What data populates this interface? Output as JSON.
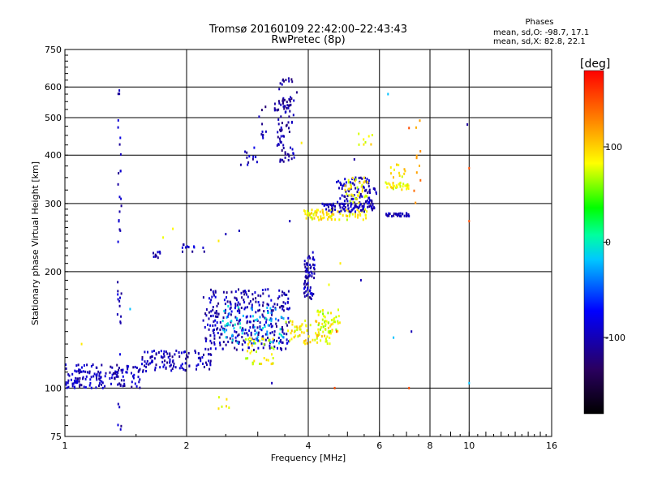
{
  "header": {
    "title": "Tromsø 20160109 22:42:00–22:43:43",
    "subtitle": "RwPretec (8p)",
    "phase_title": "Phases",
    "phase_line_o": "mean, sd,O: -98.7, 17.1",
    "phase_line_x": "mean, sd,X:  82.8, 22.1"
  },
  "chart_data": {
    "type": "scatter",
    "xlabel": "Frequency [MHz]",
    "ylabel": "Stationary phase Virtual Height [km]",
    "xscale": "log2",
    "yscale": "log",
    "xlim": [
      1,
      16
    ],
    "ylim": [
      75,
      750
    ],
    "xticks": [
      1,
      2,
      4,
      6,
      8,
      10,
      16
    ],
    "x_gridlines": [
      1,
      2,
      4,
      6,
      8,
      10
    ],
    "yticks": [
      75,
      100,
      200,
      300,
      400,
      500,
      600,
      750
    ],
    "y_gridlines": [
      100,
      200,
      300,
      400,
      500,
      600
    ],
    "xtick_labels": [
      "1",
      "2",
      "4",
      "6",
      "8",
      "10",
      "16"
    ],
    "ytick_labels": [
      "75",
      "100",
      "200",
      "300",
      "400",
      "500",
      "600",
      "750"
    ],
    "grid": true,
    "colorbar": {
      "label": "[deg]",
      "range": [
        -180,
        180
      ],
      "ticks": [
        100,
        0,
        -100
      ],
      "tick_labels": [
        "100",
        "0",
        "-100"
      ]
    },
    "clusters": [
      {
        "f": [
          1.0,
          1.55
        ],
        "h": [
          100,
          115
        ],
        "n": 150,
        "phase": -100
      },
      {
        "f": [
          1.55,
          2.3
        ],
        "h": [
          110,
          125
        ],
        "n": 110,
        "phase": -100
      },
      {
        "f": [
          2.2,
          3.6
        ],
        "h": [
          125,
          180
        ],
        "n": 320,
        "phase": -100
      },
      {
        "f": [
          2.4,
          3.5
        ],
        "h": [
          130,
          165
        ],
        "n": 70,
        "phase": -20
      },
      {
        "f": [
          2.8,
          3.3
        ],
        "h": [
          115,
          135
        ],
        "n": 40,
        "phase": 80
      },
      {
        "f": [
          3.5,
          4.6
        ],
        "h": [
          130,
          150
        ],
        "n": 80,
        "phase": 90
      },
      {
        "f": [
          4.2,
          4.8
        ],
        "h": [
          140,
          160
        ],
        "n": 40,
        "phase": 75
      },
      {
        "f": [
          3.9,
          4.15
        ],
        "h": [
          170,
          225
        ],
        "n": 70,
        "phase": -100
      },
      {
        "f": [
          3.35,
          3.7
        ],
        "h": [
          380,
          560
        ],
        "n": 70,
        "phase": -105
      },
      {
        "f": [
          3.3,
          3.75
        ],
        "h": [
          520,
          650
        ],
        "n": 30,
        "phase": -110
      },
      {
        "f": [
          2.7,
          3.0
        ],
        "h": [
          360,
          420
        ],
        "n": 12,
        "phase": -100
      },
      {
        "f": [
          3.0,
          3.15
        ],
        "h": [
          440,
          540
        ],
        "n": 10,
        "phase": -110
      },
      {
        "f": [
          3.9,
          5.6
        ],
        "h": [
          272,
          290
        ],
        "n": 90,
        "phase": 90
      },
      {
        "f": [
          4.3,
          5.8
        ],
        "h": [
          285,
          300
        ],
        "n": 70,
        "phase": -100
      },
      {
        "f": [
          4.7,
          5.7
        ],
        "h": [
          300,
          350
        ],
        "n": 70,
        "phase": -100
      },
      {
        "f": [
          4.9,
          5.6
        ],
        "h": [
          300,
          350
        ],
        "n": 40,
        "phase": 85
      },
      {
        "f": [
          5.6,
          5.9
        ],
        "h": [
          290,
          330
        ],
        "n": 25,
        "phase": -100
      },
      {
        "f": [
          6.2,
          7.1
        ],
        "h": [
          278,
          283
        ],
        "n": 35,
        "phase": -100
      },
      {
        "f": [
          6.2,
          7.1
        ],
        "h": [
          325,
          340
        ],
        "n": 35,
        "phase": 85
      },
      {
        "f": [
          6.4,
          7.0
        ],
        "h": [
          350,
          380
        ],
        "n": 12,
        "phase": 90
      },
      {
        "f": [
          1.35,
          1.38
        ],
        "h": [
          75,
          600
        ],
        "n": 40,
        "phase": -100
      },
      {
        "f": [
          1.65,
          1.72
        ],
        "h": [
          215,
          225
        ],
        "n": 10,
        "phase": -100
      },
      {
        "f": [
          1.95,
          2.25
        ],
        "h": [
          225,
          235
        ],
        "n": 12,
        "phase": -100
      },
      {
        "f": [
          2.4,
          2.55
        ],
        "h": [
          88,
          95
        ],
        "n": 6,
        "phase": 85
      },
      {
        "f": [
          5.3,
          5.8
        ],
        "h": [
          420,
          460
        ],
        "n": 8,
        "phase": 90
      },
      {
        "f": [
          7.3,
          7.6
        ],
        "h": [
          300,
          520
        ],
        "n": 10,
        "phase": 120
      }
    ],
    "outliers": [
      {
        "f": 9.9,
        "h": 480,
        "phase": -110
      },
      {
        "f": 10.0,
        "h": 370,
        "phase": 150
      },
      {
        "f": 10.0,
        "h": 270,
        "phase": 150
      },
      {
        "f": 10.0,
        "h": 103,
        "phase": -20
      },
      {
        "f": 7.2,
        "h": 140,
        "phase": -100
      },
      {
        "f": 7.1,
        "h": 100,
        "phase": 150
      },
      {
        "f": 6.5,
        "h": 135,
        "phase": -20
      },
      {
        "f": 6.3,
        "h": 575,
        "phase": -20
      },
      {
        "f": 7.1,
        "h": 470,
        "phase": 150
      },
      {
        "f": 5.2,
        "h": 390,
        "phase": -110
      },
      {
        "f": 4.8,
        "h": 210,
        "phase": 90
      },
      {
        "f": 5.4,
        "h": 190,
        "phase": -100
      },
      {
        "f": 4.5,
        "h": 185,
        "phase": 80
      },
      {
        "f": 3.85,
        "h": 430,
        "phase": 90
      },
      {
        "f": 3.6,
        "h": 270,
        "phase": -100
      },
      {
        "f": 2.5,
        "h": 250,
        "phase": -100
      },
      {
        "f": 2.7,
        "h": 255,
        "phase": -100
      },
      {
        "f": 2.4,
        "h": 240,
        "phase": 90
      },
      {
        "f": 1.75,
        "h": 245,
        "phase": 80
      },
      {
        "f": 1.85,
        "h": 258,
        "phase": 85
      },
      {
        "f": 1.1,
        "h": 130,
        "phase": 90
      },
      {
        "f": 1.45,
        "h": 160,
        "phase": -20
      },
      {
        "f": 1.35,
        "h": 155,
        "phase": -100
      },
      {
        "f": 4.65,
        "h": 100,
        "phase": 150
      },
      {
        "f": 3.25,
        "h": 103,
        "phase": -100
      },
      {
        "f": 4.7,
        "h": 140,
        "phase": 150
      }
    ]
  }
}
